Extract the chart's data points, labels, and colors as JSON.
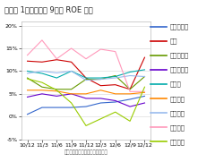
{
  "title": "『図表 1』製薬会社 9社の ROE 推移",
  "xlabel_footer": "制作著作：高田直男＠公認会計士",
  "x_labels": [
    "10/12",
    "11/3",
    "11/6",
    "11/9",
    "11/12",
    "12/3",
    "12/6",
    "12/9",
    "12/12"
  ],
  "ylim": [
    -0.05,
    0.21
  ],
  "yticks": [
    -0.05,
    0.0,
    0.05,
    0.1,
    0.15,
    0.2
  ],
  "ytick_labels": [
    "-5%",
    "0%",
    "5%",
    "10%",
    "15%",
    "20%"
  ],
  "series": [
    {
      "name": "協和キリン",
      "color": "#3366CC",
      "values": [
        0.005,
        0.02,
        0.02,
        0.02,
        0.022,
        0.03,
        0.032,
        0.038,
        0.045
      ]
    },
    {
      "name": "武田",
      "color": "#CC0000",
      "values": [
        0.122,
        0.12,
        0.125,
        0.12,
        0.085,
        0.068,
        0.07,
        0.06,
        0.13
      ]
    },
    {
      "name": "アステラス",
      "color": "#669900",
      "values": [
        0.085,
        0.065,
        0.06,
        0.06,
        0.082,
        0.082,
        0.09,
        0.06,
        0.088
      ]
    },
    {
      "name": "大日本住友",
      "color": "#6600CC",
      "values": [
        0.043,
        0.05,
        0.045,
        0.05,
        0.04,
        0.04,
        0.035,
        0.022,
        0.03
      ]
    },
    {
      "name": "塩野義",
      "color": "#00AAAA",
      "values": [
        0.1,
        0.095,
        0.085,
        0.1,
        0.085,
        0.085,
        0.088,
        0.098,
        0.103
      ]
    },
    {
      "name": "田辺三菱",
      "color": "#FF8800",
      "values": [
        0.058,
        0.058,
        0.056,
        0.05,
        0.05,
        0.058,
        0.05,
        0.05,
        0.053
      ]
    },
    {
      "name": "中外製薬",
      "color": "#99BBEE",
      "values": [
        0.095,
        0.1,
        0.096,
        0.1,
        0.08,
        0.082,
        0.085,
        0.09,
        0.088
      ]
    },
    {
      "name": "エーザイ",
      "color": "#FF99BB",
      "values": [
        0.135,
        0.168,
        0.127,
        0.15,
        0.127,
        0.148,
        0.143,
        0.055,
        0.055
      ]
    },
    {
      "name": "第一三共",
      "color": "#99CC00",
      "values": [
        0.083,
        0.075,
        0.058,
        0.03,
        -0.02,
        -0.005,
        0.01,
        -0.01,
        0.065
      ]
    }
  ],
  "background_color": "#ffffff",
  "plot_bg_color": "#ffffff",
  "title_fontsize": 6,
  "legend_fontsize": 5,
  "tick_fontsize": 4.5,
  "footer_fontsize": 4
}
